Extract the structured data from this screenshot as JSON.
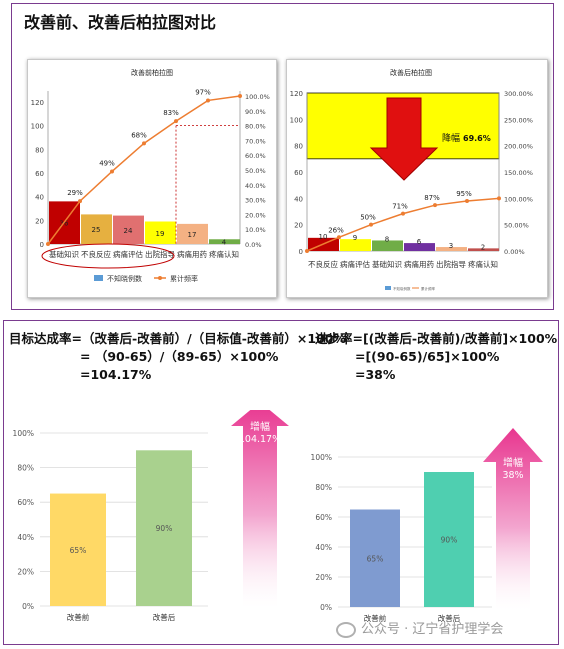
{
  "page": {
    "title": "改善前、改善后柏拉图对比",
    "watermark": "公众号 · 辽宁省护理学会"
  },
  "formulas": {
    "left": {
      "line1": "目标达成率=（改善后-改善前）/（目标值-改善前）×100%",
      "line2": "= （90-65）/（89-65）×100%",
      "line3": "=104.17%"
    },
    "right": {
      "line1": "进步率=[(改善后-改善前)/改善前]×100%",
      "line2": "=[(90-65)/65]×100%",
      "line3": "=38%"
    }
  },
  "arrows": {
    "left": {
      "label": "增幅",
      "value": "104.17%"
    },
    "right": {
      "label": "增幅",
      "value": "38%"
    },
    "down": {
      "label": "降幅",
      "value": "69.6%"
    }
  },
  "colors": {
    "frame": "#7a3b8f",
    "line": "#ed7d31",
    "highlight_yellow": "#ffff00",
    "down_arrow": "#e01010",
    "up_arrow": "#e8368f"
  },
  "chart_data": [
    {
      "type": "bar",
      "title": "改善前柏拉图",
      "categories": [
        "基础知识",
        "不良反应",
        "病痛评估",
        "出院指导",
        "病痛用药",
        "疼痛认知"
      ],
      "values": [
        36,
        25,
        24,
        19,
        17,
        4
      ],
      "bar_colors": [
        "#c00000",
        "#e6b040",
        "#e07070",
        "#ffff00",
        "#f4b183",
        "#70ad47"
      ],
      "line": {
        "name": "累计频率",
        "values": [
          29,
          49,
          68,
          83,
          97,
          100
        ],
        "labels": [
          "29%",
          "49%",
          "68%",
          "83%",
          "97%",
          ""
        ]
      },
      "bar_series_name": "不知晓例数",
      "ylim": [
        0,
        125
      ],
      "yticks": [
        "0",
        "20",
        "40",
        "60",
        "80",
        "100",
        "120"
      ],
      "y2ticks": [
        "0.0%",
        "10.0%",
        "20.0%",
        "30.0%",
        "40.0%",
        "50.0%",
        "60.0%",
        "70.0%",
        "80.0%",
        "90.0%",
        "100.0%"
      ],
      "annotations": [
        "80% reference line"
      ]
    },
    {
      "type": "bar",
      "title": "改善后柏拉图",
      "categories": [
        "不良反应",
        "病痛评估",
        "基础知识",
        "病痛用药",
        "出院指导",
        "疼痛认知"
      ],
      "values": [
        10,
        9,
        8,
        6,
        3,
        2
      ],
      "bar_colors": [
        "#c00000",
        "#ffff00",
        "#70ad47",
        "#7030a0",
        "#f4b183",
        "#c0504d"
      ],
      "line": {
        "name": "累计频率",
        "values": [
          26,
          50,
          71,
          87,
          95,
          100
        ],
        "labels": [
          "26%",
          "50%",
          "71%",
          "87%",
          "95%",
          ""
        ]
      },
      "bar_series_name": "不知晓例数",
      "ylim": [
        0,
        120
      ],
      "yticks": [
        "0",
        "20",
        "40",
        "60",
        "80",
        "100",
        "120"
      ],
      "y2ticks": [
        "0.00%",
        "50.00%",
        "100.00%",
        "150.00%",
        "200.00%",
        "250.00%",
        "300.00%"
      ]
    },
    {
      "type": "bar",
      "categories": [
        "改善前",
        "改善后"
      ],
      "values": [
        65,
        90
      ],
      "labels": [
        "65%",
        "90%"
      ],
      "bar_colors": [
        "#ffd966",
        "#a9d18e"
      ],
      "ylim": [
        0,
        100
      ],
      "yticks": [
        "0%",
        "20%",
        "40%",
        "60%",
        "80%",
        "100%"
      ]
    },
    {
      "type": "bar",
      "categories": [
        "改善前",
        "改善后"
      ],
      "values": [
        65,
        90
      ],
      "labels": [
        "65%",
        "90%"
      ],
      "bar_colors": [
        "#7f9bd0",
        "#4fcfb0"
      ],
      "ylim": [
        0,
        100
      ],
      "yticks": [
        "0%",
        "20%",
        "40%",
        "60%",
        "80%",
        "100%"
      ]
    }
  ]
}
